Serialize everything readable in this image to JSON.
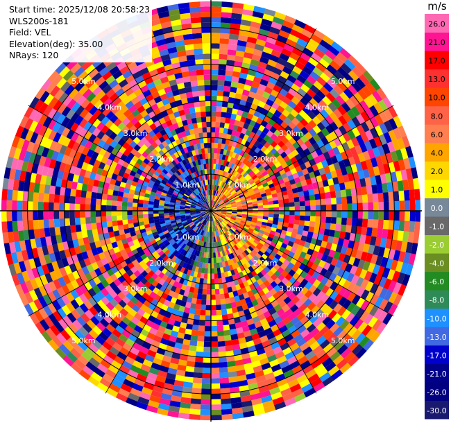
{
  "info": {
    "start_time": "Start time: 2025/12/08 20:58:23",
    "station": "WLS200s-181",
    "field": "Field: VEL",
    "elevation": "Elevation(deg): 35.00",
    "nrays": "NRays: 120"
  },
  "chart_data": {
    "type": "ppi",
    "field": "VEL",
    "nrays": 120,
    "range_rings_km": [
      1.0,
      2.0,
      3.0,
      4.0,
      5.0
    ],
    "ring_label_text": [
      "1.0km",
      "2.0km",
      "3.0km",
      "4.0km",
      "5.0km"
    ],
    "colorbar": {
      "unit": "m/s",
      "colors": [
        "#191970",
        "#000080",
        "#00008B",
        "#0000CD",
        "#4169E1",
        "#1E90FF",
        "#2E8B57",
        "#228B22",
        "#6B8E23",
        "#9ACD32",
        "#696969",
        "#778899",
        "#FFFF00",
        "#FFD700",
        "#FFA500",
        "#FF7F50",
        "#FF6347",
        "#FF4500",
        "#FF3030",
        "#FF0000",
        "#FF1493",
        "#FF69B4"
      ],
      "tick_labels": [
        "-30.0",
        "-26.0",
        "-21.0",
        "-17.0",
        "-13.0",
        "-10.0",
        "-8.0",
        "-6.0",
        "-4.0",
        "-2.0",
        "-1.0",
        "0.0",
        "1.0",
        "2.0",
        "4.0",
        "6.0",
        "8.0",
        "10.0",
        "13.0",
        "17.0",
        "21.0",
        "26.0"
      ]
    }
  }
}
